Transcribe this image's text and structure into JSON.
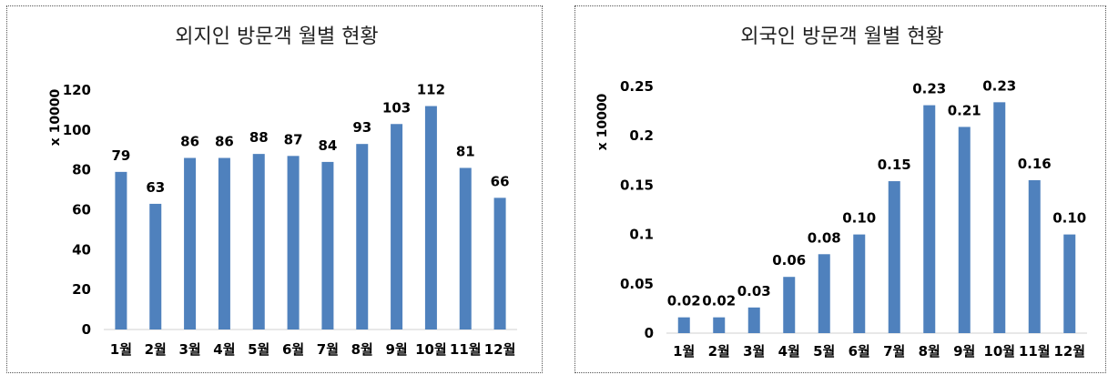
{
  "chart_data": [
    {
      "type": "bar",
      "title": "외지인 방문객 월별 현황",
      "ylabel": "x 10000",
      "xlabel": "",
      "categories": [
        "1월",
        "2월",
        "3월",
        "4월",
        "5월",
        "6월",
        "7월",
        "8월",
        "9월",
        "10월",
        "11월",
        "12월"
      ],
      "values": [
        79,
        63,
        86,
        86,
        88,
        87,
        84,
        93,
        103,
        112,
        81,
        66
      ],
      "data_labels": [
        "79",
        "63",
        "86",
        "86",
        "88",
        "87",
        "84",
        "93",
        "103",
        "112",
        "81",
        "66"
      ],
      "ylim": [
        0,
        120
      ],
      "yticks": [
        "0",
        "20",
        "40",
        "60",
        "80",
        "100",
        "120"
      ],
      "ytick_values": [
        0,
        20,
        40,
        60,
        80,
        100,
        120
      ],
      "grid": false,
      "legend": "none",
      "bar_color": "#4F81BD"
    },
    {
      "type": "bar",
      "title": "외국인 방문객 월별 현황",
      "ylabel": "x 10000",
      "xlabel": "",
      "categories": [
        "1월",
        "2월",
        "3월",
        "4월",
        "5월",
        "6월",
        "7월",
        "8월",
        "9월",
        "10월",
        "11월",
        "12월"
      ],
      "values": [
        0.016,
        0.016,
        0.026,
        0.057,
        0.08,
        0.1,
        0.154,
        0.231,
        0.209,
        0.234,
        0.155,
        0.1
      ],
      "data_labels": [
        "0.02",
        "0.02",
        "0.03",
        "0.06",
        "0.08",
        "0.10",
        "0.15",
        "0.23",
        "0.21",
        "0.23",
        "0.16",
        "0.10"
      ],
      "ylim": [
        0,
        0.25
      ],
      "yticks": [
        "0",
        "0.05",
        "0.1",
        "0.15",
        "0.2",
        "0.25"
      ],
      "ytick_values": [
        0,
        0.05,
        0.1,
        0.15,
        0.2,
        0.25
      ],
      "grid": false,
      "legend": "none",
      "bar_color": "#4F81BD"
    }
  ]
}
